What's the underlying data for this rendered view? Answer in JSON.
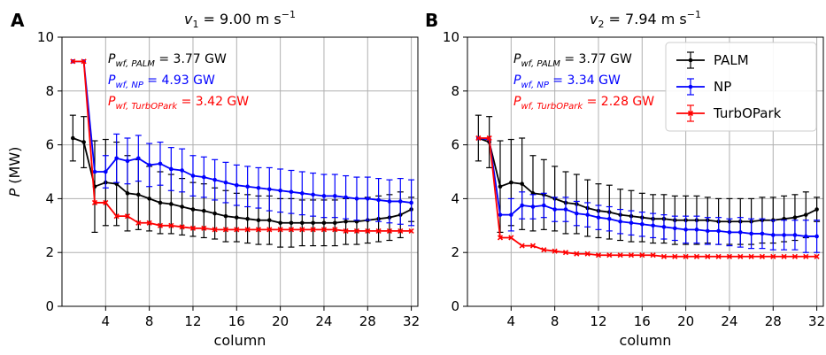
{
  "chart_data": [
    {
      "type": "line",
      "panel_label": "A",
      "title_var": "v",
      "title_sub": "1",
      "title_rest": " = 9.00 m s",
      "title_exp": "−1",
      "xlabel": "column",
      "ylabel_var": "P",
      "ylabel_unit": " (MW)",
      "xlim": [
        0,
        32.6
      ],
      "ylim": [
        0,
        10
      ],
      "xticks": [
        4,
        8,
        12,
        16,
        20,
        24,
        28,
        32
      ],
      "yticks": [
        0,
        2,
        4,
        6,
        8,
        10
      ],
      "grid": true,
      "annotations": [
        {
          "var": "P",
          "sub": "wf, PALM",
          "rest": " = 3.77 GW",
          "color": "#000000"
        },
        {
          "var": "P",
          "sub": "wf, NP",
          "rest": " = 4.93 GW",
          "color": "#0000ff"
        },
        {
          "var": "P",
          "sub": "wf, TurbOPark",
          "rest": " = 3.42 GW",
          "color": "#ff0000"
        }
      ],
      "x": [
        1,
        2,
        3,
        4,
        5,
        6,
        7,
        8,
        9,
        10,
        11,
        12,
        13,
        14,
        15,
        16,
        17,
        18,
        19,
        20,
        21,
        22,
        23,
        24,
        25,
        26,
        27,
        28,
        29,
        30,
        31,
        32
      ],
      "series": [
        {
          "name": "PALM",
          "color": "#000000",
          "values": [
            6.25,
            6.1,
            4.45,
            4.6,
            4.55,
            4.2,
            4.15,
            4.0,
            3.85,
            3.8,
            3.7,
            3.6,
            3.55,
            3.45,
            3.35,
            3.3,
            3.25,
            3.2,
            3.2,
            3.1,
            3.1,
            3.1,
            3.1,
            3.1,
            3.1,
            3.15,
            3.15,
            3.2,
            3.25,
            3.3,
            3.4,
            3.6
          ],
          "err": [
            0.85,
            0.95,
            1.7,
            1.6,
            1.55,
            1.4,
            1.3,
            1.2,
            1.15,
            1.1,
            1.05,
            1.0,
            1.0,
            0.95,
            0.95,
            0.9,
            0.9,
            0.9,
            0.9,
            0.9,
            0.9,
            0.85,
            0.85,
            0.85,
            0.85,
            0.85,
            0.85,
            0.85,
            0.85,
            0.85,
            0.85,
            0.45
          ]
        },
        {
          "name": "NP",
          "color": "#0000ff",
          "values": [
            9.1,
            9.1,
            5.0,
            5.0,
            5.5,
            5.4,
            5.5,
            5.25,
            5.3,
            5.1,
            5.05,
            4.85,
            4.8,
            4.7,
            4.6,
            4.5,
            4.45,
            4.4,
            4.35,
            4.3,
            4.25,
            4.2,
            4.15,
            4.1,
            4.1,
            4.05,
            4.0,
            4.0,
            3.95,
            3.9,
            3.9,
            3.85
          ],
          "err": [
            0,
            0,
            0.0,
            0.6,
            0.9,
            0.85,
            0.85,
            0.8,
            0.8,
            0.8,
            0.8,
            0.75,
            0.75,
            0.75,
            0.75,
            0.75,
            0.75,
            0.75,
            0.8,
            0.8,
            0.8,
            0.8,
            0.8,
            0.8,
            0.8,
            0.8,
            0.8,
            0.8,
            0.8,
            0.8,
            0.85,
            0.85
          ]
        },
        {
          "name": "TurbOPark",
          "color": "#ff0000",
          "values": [
            9.1,
            9.1,
            3.85,
            3.85,
            3.35,
            3.35,
            3.1,
            3.1,
            3.0,
            3.0,
            2.95,
            2.9,
            2.9,
            2.85,
            2.85,
            2.85,
            2.85,
            2.85,
            2.85,
            2.85,
            2.85,
            2.85,
            2.85,
            2.85,
            2.85,
            2.8,
            2.8,
            2.8,
            2.8,
            2.8,
            2.8,
            2.8
          ],
          "err": [
            0,
            0,
            0,
            0,
            0,
            0,
            0,
            0,
            0,
            0,
            0,
            0,
            0,
            0,
            0,
            0,
            0,
            0,
            0,
            0,
            0,
            0,
            0,
            0,
            0,
            0,
            0,
            0,
            0,
            0,
            0,
            0
          ]
        }
      ]
    },
    {
      "type": "line",
      "panel_label": "B",
      "title_var": "v",
      "title_sub": "2",
      "title_rest": " = 7.94 m s",
      "title_exp": "−1",
      "xlabel": "column",
      "ylabel_var": "",
      "ylabel_unit": "",
      "xlim": [
        0,
        32.6
      ],
      "ylim": [
        0,
        10
      ],
      "xticks": [
        4,
        8,
        12,
        16,
        20,
        24,
        28,
        32
      ],
      "yticks": [
        0,
        2,
        4,
        6,
        8,
        10
      ],
      "grid": true,
      "legend_position": "top-right",
      "annotations": [
        {
          "var": "P",
          "sub": "wf, PALM",
          "rest": " = 3.77 GW",
          "color": "#000000"
        },
        {
          "var": "P",
          "sub": "wf, NP",
          "rest": " = 3.34 GW",
          "color": "#0000ff"
        },
        {
          "var": "P",
          "sub": "wf, TurbOPark",
          "rest": " = 2.28 GW",
          "color": "#ff0000"
        }
      ],
      "x": [
        1,
        2,
        3,
        4,
        5,
        6,
        7,
        8,
        9,
        10,
        11,
        12,
        13,
        14,
        15,
        16,
        17,
        18,
        19,
        20,
        21,
        22,
        23,
        24,
        25,
        26,
        27,
        28,
        29,
        30,
        31,
        32
      ],
      "series": [
        {
          "name": "PALM",
          "color": "#000000",
          "values": [
            6.25,
            6.1,
            4.45,
            4.6,
            4.55,
            4.2,
            4.15,
            4.0,
            3.85,
            3.8,
            3.65,
            3.55,
            3.5,
            3.4,
            3.35,
            3.3,
            3.25,
            3.25,
            3.2,
            3.2,
            3.2,
            3.2,
            3.15,
            3.15,
            3.15,
            3.15,
            3.2,
            3.2,
            3.25,
            3.3,
            3.4,
            3.6
          ],
          "err": [
            0.85,
            0.95,
            1.7,
            1.6,
            1.7,
            1.4,
            1.3,
            1.2,
            1.15,
            1.1,
            1.05,
            1.0,
            1.0,
            0.95,
            0.95,
            0.9,
            0.9,
            0.9,
            0.9,
            0.9,
            0.9,
            0.85,
            0.85,
            0.85,
            0.85,
            0.85,
            0.85,
            0.85,
            0.85,
            0.85,
            0.85,
            0.45
          ]
        },
        {
          "name": "NP",
          "color": "#0000ff",
          "values": [
            6.25,
            6.2,
            3.4,
            3.4,
            3.75,
            3.7,
            3.75,
            3.6,
            3.6,
            3.45,
            3.4,
            3.3,
            3.25,
            3.15,
            3.1,
            3.05,
            3.0,
            2.95,
            2.9,
            2.85,
            2.85,
            2.8,
            2.8,
            2.75,
            2.75,
            2.7,
            2.7,
            2.65,
            2.65,
            2.65,
            2.6,
            2.6
          ],
          "err": [
            0,
            0,
            0,
            0.6,
            0.5,
            0.45,
            0.45,
            0.45,
            0.45,
            0.45,
            0.45,
            0.45,
            0.45,
            0.45,
            0.45,
            0.45,
            0.45,
            0.45,
            0.45,
            0.5,
            0.5,
            0.5,
            0.5,
            0.5,
            0.55,
            0.55,
            0.55,
            0.55,
            0.55,
            0.55,
            0.6,
            0.6
          ]
        },
        {
          "name": "TurbOPark",
          "color": "#ff0000",
          "values": [
            6.25,
            6.25,
            2.55,
            2.55,
            2.25,
            2.25,
            2.1,
            2.05,
            2.0,
            1.95,
            1.95,
            1.9,
            1.9,
            1.9,
            1.9,
            1.9,
            1.9,
            1.85,
            1.85,
            1.85,
            1.85,
            1.85,
            1.85,
            1.85,
            1.85,
            1.85,
            1.85,
            1.85,
            1.85,
            1.85,
            1.85,
            1.85
          ],
          "err": [
            0,
            0,
            0,
            0,
            0,
            0,
            0,
            0,
            0,
            0,
            0,
            0,
            0,
            0,
            0,
            0,
            0,
            0,
            0,
            0,
            0,
            0,
            0,
            0,
            0,
            0,
            0,
            0,
            0,
            0,
            0,
            0
          ]
        }
      ]
    }
  ]
}
